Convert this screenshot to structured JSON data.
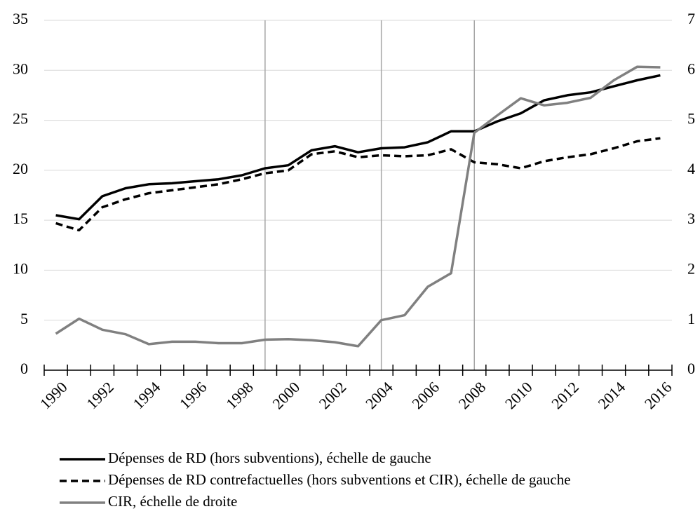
{
  "chart_data": {
    "type": "line",
    "categories": [
      "1990",
      null,
      "1992",
      null,
      "1994",
      null,
      "1996",
      null,
      "1998",
      null,
      "2000",
      null,
      "2002",
      null,
      "2004",
      null,
      "2006",
      null,
      "2008",
      null,
      "2010",
      null,
      "2012",
      null,
      "2014",
      null,
      "2016"
    ],
    "series": [
      {
        "name": "Dépenses de RD (hors subventions), échelle de gauche",
        "color": "#000000",
        "dash": false,
        "values": [
          15.5,
          15.1,
          17.4,
          18.2,
          18.6,
          18.7,
          18.9,
          19.1,
          19.5,
          20.2,
          20.5,
          22.0,
          22.4,
          21.8,
          22.2,
          22.3,
          22.8,
          23.9,
          23.9,
          24.9,
          25.7,
          27.0,
          27.5,
          27.8,
          28.4,
          29.0,
          29.5
        ]
      },
      {
        "name": "Dépenses de RD contrefactuelles (hors subventions et CIR), échelle de gauche",
        "color": "#000000",
        "dash": true,
        "values": [
          14.7,
          14.0,
          16.3,
          17.1,
          17.7,
          18.0,
          18.3,
          18.6,
          19.1,
          19.7,
          20.0,
          21.6,
          21.9,
          21.3,
          21.5,
          21.4,
          21.5,
          22.1,
          20.8,
          20.6,
          20.2,
          20.9,
          21.3,
          21.6,
          22.2,
          22.9,
          23.2
        ]
      },
      {
        "name": "CIR, échelle de droite",
        "color": "#808080",
        "dash": false,
        "axis": "y2",
        "values": [
          0.73,
          1.03,
          0.81,
          0.72,
          0.52,
          0.57,
          0.57,
          0.54,
          0.54,
          0.61,
          0.62,
          0.6,
          0.56,
          0.48,
          1.0,
          1.1,
          1.67,
          1.94,
          4.75,
          5.1,
          5.44,
          5.3,
          5.35,
          5.45,
          5.8,
          6.07,
          6.06
        ]
      }
    ],
    "ylim": [
      0,
      35
    ],
    "yticks": [
      0,
      5,
      10,
      15,
      20,
      25,
      30,
      35
    ],
    "y2lim": [
      0,
      7
    ],
    "y2ticks": [
      0,
      1,
      2,
      3,
      4,
      5,
      6,
      7
    ],
    "grid": true,
    "vlines": [
      9,
      14,
      18
    ]
  }
}
